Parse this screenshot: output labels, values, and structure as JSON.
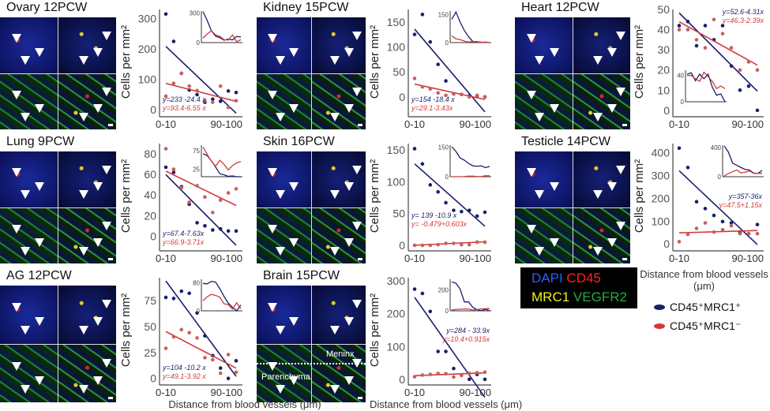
{
  "panels": [
    {
      "title": "Ovary 12PCW"
    },
    {
      "title": "Kidney 15PCW"
    },
    {
      "title": "Heart 12PCW"
    },
    {
      "title": "Lung 9PCW"
    },
    {
      "title": "Skin 16PCW"
    },
    {
      "title": "Testicle 14PCW"
    },
    {
      "title": "AG 12PCW"
    },
    {
      "title": "Brain 15PCW",
      "labels": [
        "Meninx",
        "Parenchyma"
      ]
    }
  ],
  "channel_legend": [
    {
      "label": "DAPI",
      "color": "#2f5cff"
    },
    {
      "label": "CD45",
      "color": "#ff2020"
    },
    {
      "label": "MRC1",
      "color": "#f0f020"
    },
    {
      "label": "VEGFR2",
      "color": "#20b040"
    }
  ],
  "series_legend": [
    {
      "label": "CD45⁺MRC1⁺",
      "color": "#1a1f6e"
    },
    {
      "label": "CD45⁺MRC1⁻",
      "color": "#d23a3a"
    }
  ],
  "xaxis_label": "Distance from blood vessels (μm)",
  "xaxis_label_split": [
    "Distance from blood vessels",
    "(μm)"
  ],
  "chart_data": [
    {
      "type": "scatter",
      "title": "Ovary 12PCW",
      "ylabel": "Cells per mm²",
      "xticks": [
        "0-10",
        "90-100"
      ],
      "x": [
        1,
        2,
        3,
        4,
        5,
        6,
        7,
        8,
        9,
        10
      ],
      "ylim": [
        -15,
        330
      ],
      "yticks": [
        0,
        100,
        200,
        300
      ],
      "inset_yticks": [
        0,
        300
      ],
      "inset_ylim": [
        0,
        320
      ],
      "series": [
        {
          "name": "CD45⁺MRC1⁺",
          "color": "#1a1f6e",
          "values": [
            315,
            225,
            120,
            65,
            50,
            25,
            35,
            28,
            62,
            57
          ],
          "fit": {
            "intercept": 233,
            "slope": -24.4,
            "label": "y=233 -24.4 x"
          }
        },
        {
          "name": "CD45⁺MRC1⁻",
          "color": "#d23a3a",
          "values": [
            45,
            87,
            120,
            78,
            63,
            30,
            25,
            78,
            8,
            30
          ],
          "fit": {
            "intercept": 93.4,
            "slope": -6.55,
            "label": "y=93.4-6.55 x"
          }
        }
      ]
    },
    {
      "type": "scatter",
      "title": "Kidney 15PCW",
      "ylabel": "Cells per mm²",
      "xticks": [
        "0-10",
        "90-100"
      ],
      "x": [
        1,
        2,
        3,
        4,
        5,
        6,
        7,
        8,
        9,
        10
      ],
      "ylim": [
        -35,
        175
      ],
      "yticks": [
        0,
        50,
        100,
        150
      ],
      "inset_yticks": [
        0,
        150
      ],
      "inset_ylim": [
        0,
        170
      ],
      "series": [
        {
          "name": "CD45⁺MRC1⁺",
          "color": "#1a1f6e",
          "values": [
            125,
            165,
            110,
            65,
            32,
            6,
            5,
            2,
            2,
            0
          ],
          "fit": {
            "intercept": 154,
            "slope": -18.4,
            "label": "y=154 -18.4 x"
          }
        },
        {
          "name": "CD45⁺MRC1⁻",
          "color": "#d23a3a",
          "values": [
            37,
            20,
            16,
            8,
            3,
            6,
            5,
            0,
            3,
            0
          ],
          "fit": {
            "intercept": 29.1,
            "slope": -3.43,
            "label": "y=29.1-3.43x"
          }
        }
      ]
    },
    {
      "type": "scatter",
      "title": "Heart 12PCW",
      "ylabel": "Cells per mm²",
      "xticks": [
        "0-10",
        "90-100"
      ],
      "x": [
        1,
        2,
        3,
        4,
        5,
        6,
        7,
        8,
        9,
        10
      ],
      "ylim": [
        -2,
        50
      ],
      "yticks": [
        0,
        10,
        20,
        30,
        40,
        50
      ],
      "inset_yticks": [
        0,
        40
      ],
      "inset_ylim": [
        0,
        48
      ],
      "series": [
        {
          "name": "CD45⁺MRC1⁺",
          "color": "#1a1f6e",
          "values": [
            42,
            44,
            32,
            42,
            35,
            42,
            22,
            10,
            12,
            0
          ],
          "fit": {
            "intercept": 52.6,
            "slope": -4.31,
            "label": "y=52.6-4.31x"
          }
        },
        {
          "name": "CD45⁺MRC1⁻",
          "color": "#d23a3a",
          "values": [
            40,
            40,
            35,
            31,
            45,
            38,
            31,
            20,
            24,
            20
          ],
          "fit": {
            "intercept": 46.3,
            "slope": -2.39,
            "label": "y=46.3-2.39x"
          }
        }
      ]
    },
    {
      "type": "scatter",
      "title": "Lung 9PCW",
      "ylabel": "Cells per mm²",
      "xticks": [
        "0-10",
        "90-100"
      ],
      "x": [
        1,
        2,
        3,
        4,
        5,
        6,
        7,
        8,
        9,
        10
      ],
      "ylim": [
        -12,
        90
      ],
      "yticks": [
        0,
        20,
        40,
        60,
        80
      ],
      "inset_yticks": [
        25,
        75
      ],
      "inset_ylim": [
        5,
        90
      ],
      "series": [
        {
          "name": "CD45⁺MRC1⁺",
          "color": "#1a1f6e",
          "values": [
            67,
            62,
            48,
            31,
            13,
            10,
            6,
            7,
            5,
            5
          ],
          "fit": {
            "intercept": 67.4,
            "slope": -7.63,
            "label": "y=67.4-7.63x"
          }
        },
        {
          "name": "CD45⁺MRC1⁻",
          "color": "#d23a3a",
          "values": [
            85,
            65,
            47,
            33,
            49,
            38,
            23,
            35,
            42,
            46
          ],
          "fit": {
            "intercept": 66.9,
            "slope": -3.71,
            "label": "y=66.9-3.71x"
          }
        }
      ]
    },
    {
      "type": "scatter",
      "title": "Skin 16PCW",
      "ylabel": "Cells per mm²",
      "xticks": [
        "0-10",
        "90-100"
      ],
      "x": [
        1,
        2,
        3,
        4,
        5,
        6,
        7,
        8,
        9,
        10
      ],
      "ylim": [
        -5,
        160
      ],
      "yticks": [
        0,
        50,
        100,
        150
      ],
      "inset_yticks": [
        0,
        150
      ],
      "inset_ylim": [
        0,
        160
      ],
      "series": [
        {
          "name": "CD45⁺MRC1⁺",
          "color": "#1a1f6e",
          "values": [
            152,
            128,
            95,
            84,
            67,
            55,
            53,
            55,
            46,
            52
          ],
          "fit": {
            "intercept": 139,
            "slope": -10.9,
            "label": "y= 139 -10.9 x"
          }
        },
        {
          "name": "CD45⁺MRC1⁻",
          "color": "#d23a3a",
          "values": [
            0,
            0,
            0,
            1,
            3,
            3,
            1,
            1,
            5,
            5
          ],
          "fit": {
            "intercept": -0.479,
            "slope": 0.603,
            "label": "y= -0.479+0.603x"
          }
        }
      ]
    },
    {
      "type": "scatter",
      "title": "Testicle 14PCW",
      "ylabel": "Cells per mm²",
      "xticks": [
        "0-10",
        "90-100"
      ],
      "x": [
        1,
        2,
        3,
        4,
        5,
        6,
        7,
        8,
        9,
        10
      ],
      "ylim": [
        -20,
        440
      ],
      "yticks": [
        0,
        100,
        200,
        300,
        400
      ],
      "inset_yticks": [
        0,
        400
      ],
      "inset_ylim": [
        0,
        430
      ],
      "series": [
        {
          "name": "CD45⁺MRC1⁺",
          "color": "#1a1f6e",
          "values": [
            420,
            335,
            185,
            155,
            125,
            98,
            92,
            50,
            45,
            85
          ],
          "fit": {
            "intercept": 357,
            "slope": -36,
            "label": "y=357-36x"
          }
        },
        {
          "name": "CD45⁺MRC1⁻",
          "color": "#d23a3a",
          "values": [
            10,
            42,
            68,
            92,
            52,
            62,
            80,
            45,
            45,
            45
          ],
          "fit": {
            "intercept": 47.5,
            "slope": 1.15,
            "label": "y=47.5+1.15x"
          }
        }
      ]
    },
    {
      "type": "scatter",
      "title": "AG 12PCW",
      "ylabel": "Cells per mm²",
      "xticks": [
        "0-10",
        "90-100"
      ],
      "x": [
        1,
        2,
        3,
        4,
        5,
        6,
        7,
        8,
        9,
        10
      ],
      "ylim": [
        -4,
        97
      ],
      "yticks": [
        0,
        25,
        50,
        75
      ],
      "inset_yticks": [
        0,
        80
      ],
      "inset_ylim": [
        0,
        90
      ],
      "series": [
        {
          "name": "CD45⁺MRC1⁺",
          "color": "#1a1f6e",
          "values": [
            78,
            77,
            84,
            82,
            63,
            41,
            22,
            10,
            0,
            17
          ],
          "fit": {
            "intercept": 104,
            "slope": -10.2,
            "label": "y=104 -10.2 x"
          }
        },
        {
          "name": "CD45⁺MRC1⁻",
          "color": "#d23a3a",
          "values": [
            29,
            40,
            47,
            44,
            39,
            20,
            18,
            5,
            23,
            6
          ],
          "fit": {
            "intercept": 49.1,
            "slope": -3.92,
            "label": "y=49.1-3.92 x"
          }
        }
      ]
    },
    {
      "type": "scatter",
      "title": "Brain 15PCW",
      "ylabel": "Cells per mm²",
      "xticks": [
        "0-10",
        "90-100"
      ],
      "x": [
        1,
        2,
        3,
        4,
        5,
        6,
        7,
        8,
        9,
        10
      ],
      "ylim": [
        -10,
        310
      ],
      "yticks": [
        0,
        100,
        200,
        300
      ],
      "inset_yticks": [
        0,
        200
      ],
      "inset_ylim": [
        0,
        300
      ],
      "series": [
        {
          "name": "CD45⁺MRC1⁺",
          "color": "#1a1f6e",
          "values": [
            275,
            262,
            207,
            85,
            85,
            33,
            12,
            0,
            15,
            0
          ],
          "fit": {
            "intercept": 284,
            "slope": -33.9,
            "label": "y=284 - 33.9x"
          }
        },
        {
          "name": "CD45⁺MRC1⁻",
          "color": "#d23a3a",
          "values": [
            8,
            13,
            15,
            18,
            17,
            7,
            12,
            18,
            20,
            22
          ],
          "fit": {
            "intercept": 10.4,
            "slope": 0.915,
            "label": "y=10.4+0.915x"
          }
        }
      ]
    }
  ]
}
